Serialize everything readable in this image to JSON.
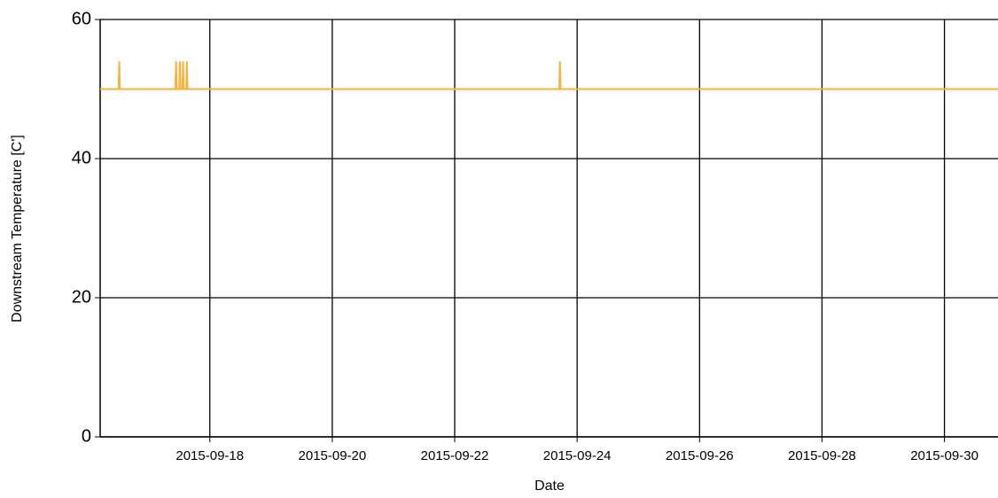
{
  "chart_data": {
    "type": "line",
    "x_label": "Date",
    "y_label": "Downstream Temperature [C']",
    "x": [
      "2015-09-16T05:00",
      "2015-09-16T12:15",
      "2015-09-16T12:30",
      "2015-09-16T12:45",
      "2015-09-17T10:30",
      "2015-09-17T10:45",
      "2015-09-17T11:00",
      "2015-09-17T12:00",
      "2015-09-17T12:15",
      "2015-09-17T12:30",
      "2015-09-17T13:15",
      "2015-09-17T13:30",
      "2015-09-17T13:45",
      "2015-09-17T14:45",
      "2015-09-17T15:00",
      "2015-09-17T15:15",
      "2015-09-23T17:00",
      "2015-09-23T17:15",
      "2015-09-23T17:30",
      "2015-09-30T21:00"
    ],
    "series": [
      {
        "name": "Downstream Temperature",
        "color": "#f7b23b",
        "values": [
          50,
          50,
          54,
          50,
          50,
          54,
          50,
          50,
          54,
          50,
          50,
          54,
          50,
          50,
          54,
          50,
          50,
          54,
          50,
          50
        ]
      }
    ],
    "xlim": [
      "2015-09-16T05:00",
      "2015-09-30T21:00"
    ],
    "xticks": [
      "2015-09-18",
      "2015-09-20",
      "2015-09-22",
      "2015-09-24",
      "2015-09-26",
      "2015-09-28",
      "2015-09-30"
    ],
    "ylim": [
      0,
      60
    ],
    "yticks": [
      0,
      20,
      40,
      60
    ],
    "grid": true
  }
}
